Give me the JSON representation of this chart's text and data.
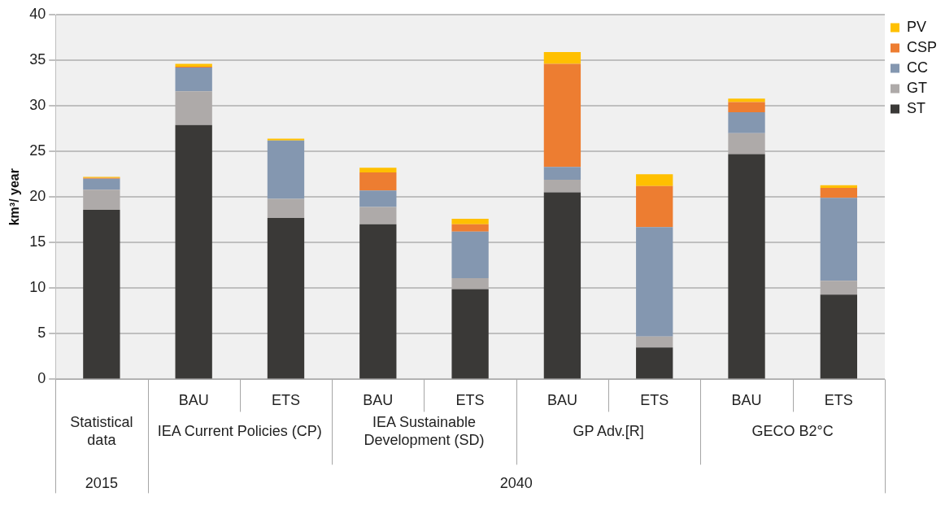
{
  "chart_data": {
    "type": "bar",
    "stacked": true,
    "ylabel": "km³/ year",
    "categories": [
      null,
      "BAU",
      "ETS",
      "BAU",
      "ETS",
      "BAU",
      "ETS",
      "BAU",
      "ETS"
    ],
    "series": [
      {
        "name": "ST",
        "color": "#3a3937",
        "values": [
          18.6,
          27.9,
          17.7,
          17.0,
          9.9,
          20.5,
          3.5,
          24.7,
          9.3
        ]
      },
      {
        "name": "GT",
        "color": "#aeaaa9",
        "values": [
          2.2,
          3.7,
          2.1,
          1.9,
          1.2,
          1.4,
          1.2,
          2.3,
          1.5
        ]
      },
      {
        "name": "CC",
        "color": "#8497b0",
        "values": [
          1.2,
          2.6,
          6.4,
          1.8,
          5.1,
          1.4,
          12.0,
          2.3,
          9.1
        ]
      },
      {
        "name": "CSP",
        "color": "#ed7d31",
        "values": [
          0.1,
          0.1,
          0,
          2.0,
          0.8,
          11.3,
          4.5,
          1.1,
          1.1
        ]
      },
      {
        "name": "PV",
        "color": "#ffc000",
        "values": [
          0.1,
          0.3,
          0.2,
          0.5,
          0.6,
          1.3,
          1.3,
          0.4,
          0.3
        ]
      }
    ],
    "ylim": [
      0,
      40
    ],
    "yticks": [
      0,
      5,
      10,
      15,
      20,
      25,
      30,
      35,
      40
    ],
    "grid": "y",
    "legend": "top right",
    "annotations": [
      "Statistical data",
      "IEA Current Policies (CP)",
      "IEA Sustainable Development (SD)",
      "GP Adv.[R]",
      "GECO B2°C",
      "2015",
      "2040"
    ]
  }
}
